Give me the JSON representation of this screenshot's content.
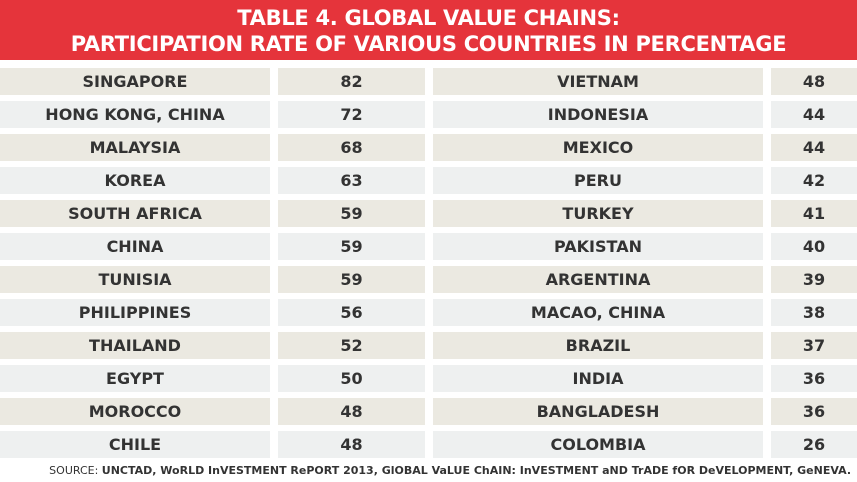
{
  "title_line1": "TABLE 4. GLOBAL VALUE CHAINS:",
  "title_line2": "PARTICIPATION RATE OF VARIOUS COUNTRIES IN PERCENTAGE",
  "rows": [
    {
      "country_left": "SINGAPORE",
      "value_left": "82",
      "country_right": "VIETNAM",
      "value_right": "48"
    },
    {
      "country_left": "HONG KONG, CHINA",
      "value_left": "72",
      "country_right": "INDONESIA",
      "value_right": "44"
    },
    {
      "country_left": "MALAYSIA",
      "value_left": "68",
      "country_right": "MEXICO",
      "value_right": "44"
    },
    {
      "country_left": "KOREA",
      "value_left": "63",
      "country_right": "PERU",
      "value_right": "42"
    },
    {
      "country_left": "SOUTH AFRICA",
      "value_left": "59",
      "country_right": "TURKEY",
      "value_right": "41"
    },
    {
      "country_left": "CHINA",
      "value_left": "59",
      "country_right": "PAKISTAN",
      "value_right": "40"
    },
    {
      "country_left": "TUNISIA",
      "value_left": "59",
      "country_right": "ARGENTINA",
      "value_right": "39"
    },
    {
      "country_left": "PHILIPPINES",
      "value_left": "56",
      "country_right": "MACAO, CHINA",
      "value_right": "38"
    },
    {
      "country_left": "THAILAND",
      "value_left": "52",
      "country_right": "BRAZIL",
      "value_right": "37"
    },
    {
      "country_left": "EGYPT",
      "value_left": "50",
      "country_right": "INDIA",
      "value_right": "36"
    },
    {
      "country_left": "MOROCCO",
      "value_left": "48",
      "country_right": "BANGLADESH",
      "value_right": "36"
    },
    {
      "country_left": "CHILE",
      "value_left": "48",
      "country_right": "COLOMBIA",
      "value_right": "26"
    }
  ],
  "source_label": "SOURCE:",
  "source_text": "UNCTAD, WoRLD InVESTMENT RePORT 2013, GlOBAL VaLUE ChAIN: InVESTMENT aND TrADE fOR DeVELOPMENT, GeNEVA.",
  "colors": {
    "header_bg": "#e5343b",
    "row_odd": "#ebe9e1",
    "row_even": "#eef0f0"
  }
}
